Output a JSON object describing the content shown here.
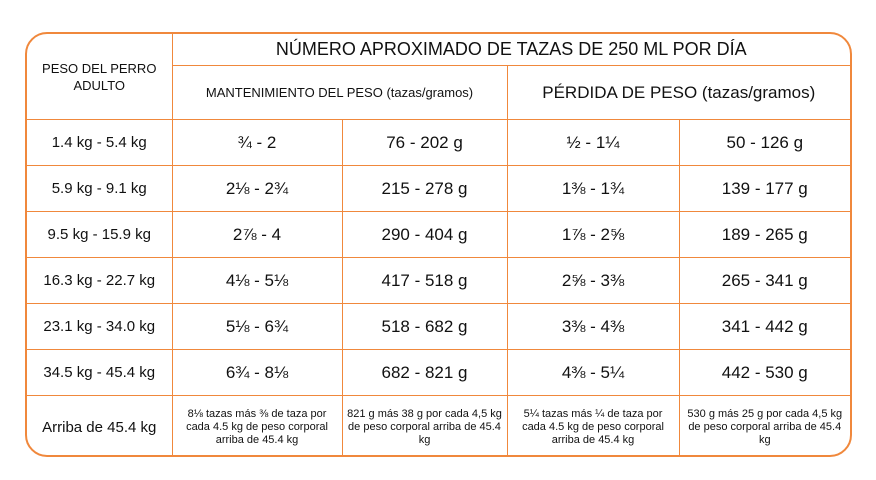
{
  "table": {
    "header": {
      "row_label": "PESO DEL PERRO ADULTO",
      "title": "NÚMERO APROXIMADO DE TAZAS DE 250 ML POR DÍA",
      "subheaders": [
        "MANTENIMIENTO DEL PESO (tazas/gramos)",
        "PÉRDIDA DE PESO (tazas/gramos)"
      ]
    },
    "rows": [
      [
        "1.4 kg - 5.4 kg",
        "¾ - 2",
        "76 - 202 g",
        "½ - 1¼",
        "50 - 126 g"
      ],
      [
        "5.9 kg - 9.1 kg",
        "2⅛ - 2¾",
        "215 - 278 g",
        "1⅜ - 1¾",
        "139 - 177 g"
      ],
      [
        "9.5 kg - 15.9 kg",
        "2⅞ - 4",
        "290 - 404 g",
        "1⅞ - 2⅝",
        "189 - 265 g"
      ],
      [
        "16.3 kg - 22.7 kg",
        "4⅛ - 5⅛",
        "417 - 518 g",
        "2⅝ - 3⅜",
        "265 - 341 g"
      ],
      [
        "23.1 kg - 34.0 kg",
        "5⅛ - 6¾",
        "518 - 682 g",
        "3⅜ - 4⅜",
        "341 - 442 g"
      ],
      [
        "34.5 kg - 45.4 kg",
        "6¾ - 8⅛",
        "682 - 821 g",
        "4⅜ - 5¼",
        "442 - 530 g"
      ],
      [
        "Arriba de 45.4 kg",
        "8⅛ tazas más ⅜ de taza por cada 4.5 kg de peso corporal arriba de 45.4 kg",
        "821 g más 38 g por cada 4,5 kg de peso corporal arriba de 45.4 kg",
        "5¼ tazas más ¼ de taza por cada 4.5 kg de peso corporal arriba de 45.4 kg",
        "530 g más 25 g por cada 4,5 kg de peso corporal arriba de 45.4 kg"
      ]
    ]
  }
}
